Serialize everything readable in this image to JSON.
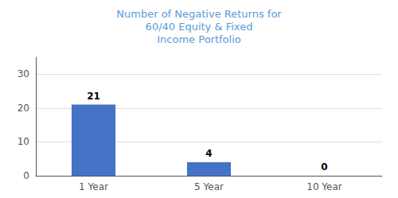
{
  "chart_data": {
    "type": "bar",
    "title": "Number of Negative Returns for\n60/40 Equity & Fixed\nIncome Portfolio",
    "categories": [
      "1 Year",
      "5 Year",
      "10 Year"
    ],
    "values": [
      21,
      4,
      0
    ],
    "color": "#4472C4",
    "ylim": [
      0,
      35
    ],
    "yticks": [
      0,
      10,
      20,
      30
    ],
    "grid": true,
    "data_labels": true
  }
}
